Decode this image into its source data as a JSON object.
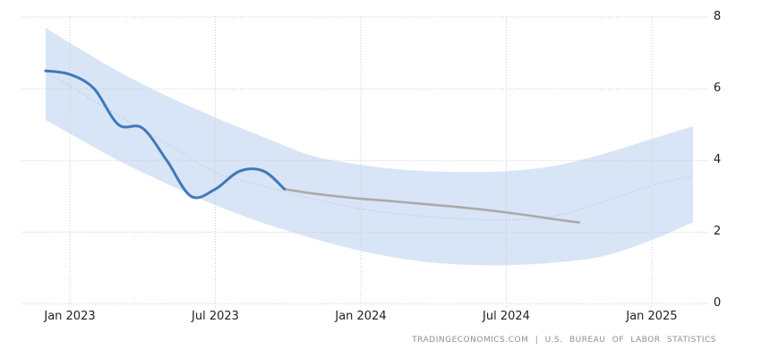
{
  "attribution": {
    "text": "TRADINGECONOMICS.COM | U.S. BUREAU OF LABOR STATISTICS"
  },
  "colors": {
    "background": "#ffffff",
    "actual_line": "#4179ba",
    "forecast_line": "#aaaaaa",
    "band_fill": "#d8e5f7",
    "band_midline": "#b6c0cb",
    "gridline": "#cccccc",
    "axis_text": "#222222",
    "attribution_text": "#8f8f8f"
  },
  "chart_data": {
    "type": "line",
    "title": "",
    "grid": true,
    "legend": false,
    "y_axis_side": "right",
    "ylim": [
      0,
      8
    ],
    "y_ticks": [
      8,
      6,
      4,
      2,
      0
    ],
    "x_unit": "months_since_jan_2023",
    "x_ticks": [
      {
        "m": 0,
        "label": "Jan 2023"
      },
      {
        "m": 6,
        "label": "Jul 2023"
      },
      {
        "m": 12,
        "label": "Jan 2024"
      },
      {
        "m": 18,
        "label": "Jul 2024"
      },
      {
        "m": 24,
        "label": "Jan 2025"
      }
    ],
    "series": [
      {
        "name": "actual-inflation",
        "type": "line",
        "color_key": "actual_line",
        "points": [
          [
            -1,
            6.5
          ],
          [
            0,
            6.4
          ],
          [
            1,
            6.0
          ],
          [
            2,
            5.0
          ],
          [
            3,
            4.9
          ],
          [
            4,
            4.0
          ],
          [
            5,
            3.0
          ],
          [
            6,
            3.2
          ],
          [
            7,
            3.7
          ],
          [
            8,
            3.7
          ],
          [
            8.85,
            3.2
          ]
        ]
      },
      {
        "name": "forecast",
        "type": "line",
        "color_key": "forecast_line",
        "points": [
          [
            8.85,
            3.2
          ],
          [
            10,
            3.08
          ],
          [
            11,
            3.0
          ],
          [
            12,
            2.93
          ],
          [
            13,
            2.88
          ],
          [
            14,
            2.82
          ],
          [
            15,
            2.76
          ],
          [
            16,
            2.7
          ],
          [
            17,
            2.63
          ],
          [
            18,
            2.55
          ],
          [
            19,
            2.46
          ],
          [
            20,
            2.36
          ],
          [
            21,
            2.27
          ]
        ]
      },
      {
        "name": "band-midline",
        "type": "dotted-line",
        "color_key": "band_midline",
        "points": [
          [
            -0.85,
            6.41
          ],
          [
            0,
            6.08
          ],
          [
            2,
            5.25
          ],
          [
            4,
            4.48
          ],
          [
            6,
            3.67
          ],
          [
            8,
            3.28
          ],
          [
            10,
            2.93
          ],
          [
            12,
            2.65
          ],
          [
            14,
            2.48
          ],
          [
            16,
            2.38
          ],
          [
            18,
            2.34
          ],
          [
            20,
            2.45
          ],
          [
            22,
            2.85
          ],
          [
            24,
            3.3
          ],
          [
            25.7,
            3.58
          ]
        ]
      },
      {
        "name": "confidence-band",
        "type": "band",
        "color_key": "band_fill",
        "points": [
          [
            -1,
            7.7,
            5.13
          ],
          [
            0,
            7.28,
            4.75
          ],
          [
            2,
            6.48,
            4.0
          ],
          [
            4,
            5.8,
            3.35
          ],
          [
            6,
            5.2,
            2.75
          ],
          [
            8,
            4.65,
            2.25
          ],
          [
            10,
            4.13,
            1.83
          ],
          [
            12,
            3.88,
            1.48
          ],
          [
            14,
            3.73,
            1.23
          ],
          [
            16,
            3.68,
            1.1
          ],
          [
            18,
            3.7,
            1.08
          ],
          [
            20,
            3.85,
            1.15
          ],
          [
            22,
            4.18,
            1.33
          ],
          [
            24,
            4.6,
            1.78
          ],
          [
            25.7,
            4.95,
            2.28
          ]
        ]
      }
    ]
  }
}
